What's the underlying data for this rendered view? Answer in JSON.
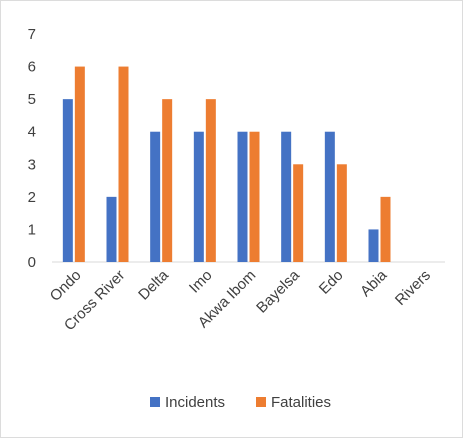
{
  "chart_data": {
    "type": "bar",
    "categories": [
      "Ondo",
      "Cross River",
      "Delta",
      "Imo",
      "Akwa Ibom",
      "Bayelsa",
      "Edo",
      "Abia",
      "Rivers"
    ],
    "series": [
      {
        "name": "Incidents",
        "color": "#4472c4",
        "values": [
          5,
          2,
          4,
          4,
          4,
          4,
          4,
          1,
          0
        ]
      },
      {
        "name": "Fatalities",
        "color": "#ed7d31",
        "values": [
          6,
          6,
          5,
          5,
          4,
          3,
          3,
          2,
          0
        ]
      }
    ],
    "ylim": [
      0,
      7
    ],
    "yticks": [
      "0",
      "1",
      "2",
      "3",
      "4",
      "5",
      "6",
      "7"
    ],
    "grid": false,
    "legend": "bottom",
    "axis_color": "#d9d9d9"
  }
}
